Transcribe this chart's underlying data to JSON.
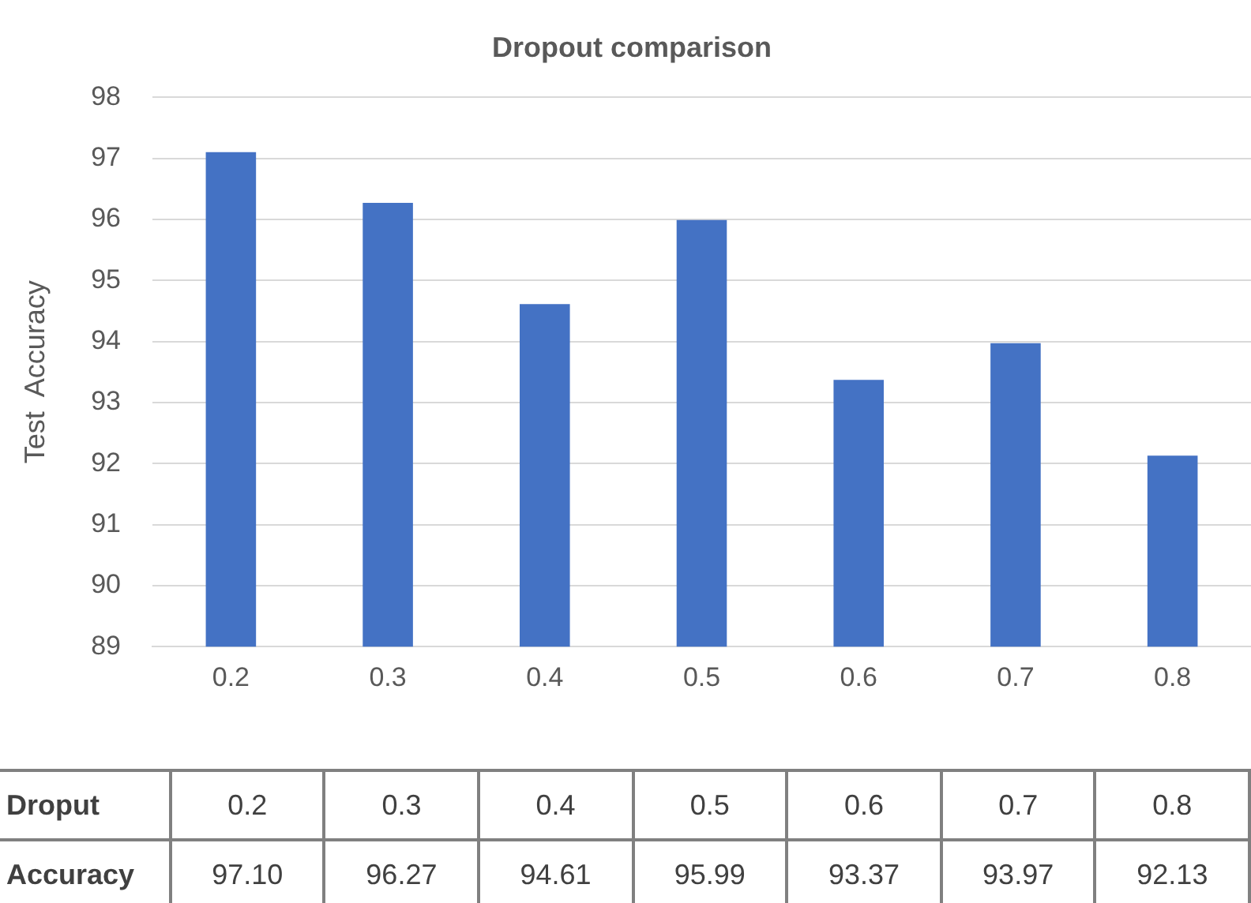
{
  "chart_data": {
    "type": "bar",
    "title": "Dropout comparison",
    "ylabel": "Test  Accuracy",
    "categories": [
      "0.2",
      "0.3",
      "0.4",
      "0.5",
      "0.6",
      "0.7",
      "0.8"
    ],
    "values": [
      97.1,
      96.27,
      94.61,
      95.99,
      93.37,
      93.97,
      92.13
    ],
    "value_labels": [
      "97.10",
      "96.27",
      "94.61",
      "95.99",
      "93.37",
      "93.97",
      "92.13"
    ],
    "annotations": [
      "Droput",
      "Accuracy"
    ],
    "color": "#4472c4",
    "ylim": [
      89,
      98
    ],
    "yticks": [
      89,
      90,
      91,
      92,
      93,
      94,
      95,
      96,
      97,
      98
    ],
    "grid": "y",
    "legend": false
  }
}
